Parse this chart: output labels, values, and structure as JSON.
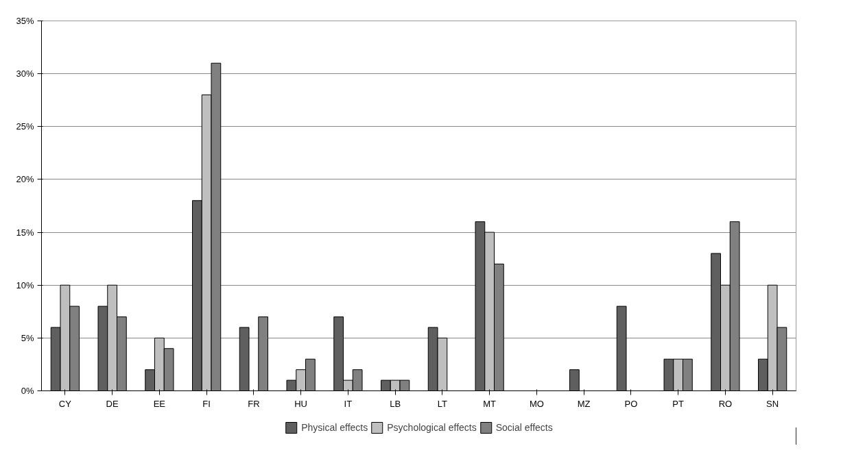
{
  "chart_data": {
    "type": "bar",
    "categories": [
      "CY",
      "DE",
      "EE",
      "FI",
      "FR",
      "HU",
      "IT",
      "LB",
      "LT",
      "MT",
      "MO",
      "MZ",
      "PO",
      "PT",
      "RO",
      "SN"
    ],
    "series": [
      {
        "name": "Physical effects",
        "color": "#5f5f5f",
        "values": [
          6,
          8,
          2,
          18,
          6,
          1,
          7,
          1,
          6,
          16,
          null,
          2,
          8,
          3,
          13,
          3
        ]
      },
      {
        "name": "Psychological effects",
        "color": "#bfbfbf",
        "values": [
          10,
          10,
          5,
          28,
          null,
          2,
          1,
          1,
          5,
          15,
          null,
          null,
          null,
          3,
          10,
          10
        ]
      },
      {
        "name": "Social effects",
        "color": "#808080",
        "values": [
          8,
          7,
          4,
          31,
          7,
          3,
          2,
          1,
          null,
          12,
          null,
          null,
          null,
          3,
          16,
          6
        ]
      }
    ],
    "ylim": [
      0,
      35
    ],
    "yticks": [
      {
        "value": 0,
        "label": "0%"
      },
      {
        "value": 5,
        "label": "5%"
      },
      {
        "value": 10,
        "label": "10%"
      },
      {
        "value": 15,
        "label": "15%"
      },
      {
        "value": 20,
        "label": "20%"
      },
      {
        "value": 25,
        "label": "25%"
      },
      {
        "value": 30,
        "label": "30%"
      },
      {
        "value": 35,
        "label": "35%"
      }
    ],
    "grid": "y",
    "legend": "bottom"
  }
}
